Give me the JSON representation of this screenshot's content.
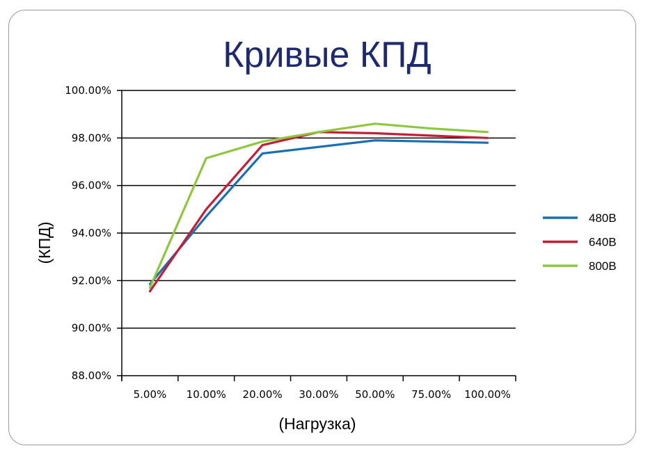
{
  "chart_data": {
    "type": "line",
    "title": "Кривые КПД",
    "xlabel": "(Нагрузка)",
    "ylabel": "(КПД)",
    "categories": [
      "5.00%",
      "10.00%",
      "20.00%",
      "30.00%",
      "50.00%",
      "75.00%",
      "100.00%"
    ],
    "ylim": [
      88,
      100
    ],
    "yticks": [
      100,
      98,
      96,
      94,
      92,
      90,
      88
    ],
    "ytick_labels": [
      "100.00%",
      "98.00%",
      "96.00%",
      "94.00%",
      "92.00%",
      "90.00%",
      "88.00%"
    ],
    "point_positions": [
      0.5,
      1.5,
      2.5,
      3.5,
      4.5,
      5.5,
      6.5
    ],
    "point_positions_note_removed": true,
    "grid": "horizontal",
    "legend_position": "right",
    "series": [
      {
        "name": "480В",
        "color": "#1a6fb3",
        "values": [
          91.85,
          94.7,
          97.35,
          97.65,
          97.9,
          97.85,
          97.8
        ],
        "points": [
          0,
          1,
          2,
          4,
          6
        ]
      },
      {
        "name": "640В",
        "color": "#c21e36",
        "values": [
          91.55,
          95.0,
          97.7,
          98.25,
          98.2,
          98.1,
          98.0
        ],
        "points": [
          0,
          1,
          2,
          3,
          4,
          6
        ]
      },
      {
        "name": "800В",
        "color": "#8ec63f",
        "values": [
          91.7,
          97.15,
          97.85,
          98.25,
          98.6,
          98.4,
          98.25
        ],
        "points": [
          0,
          1,
          2,
          3,
          4,
          5,
          6
        ]
      }
    ]
  }
}
